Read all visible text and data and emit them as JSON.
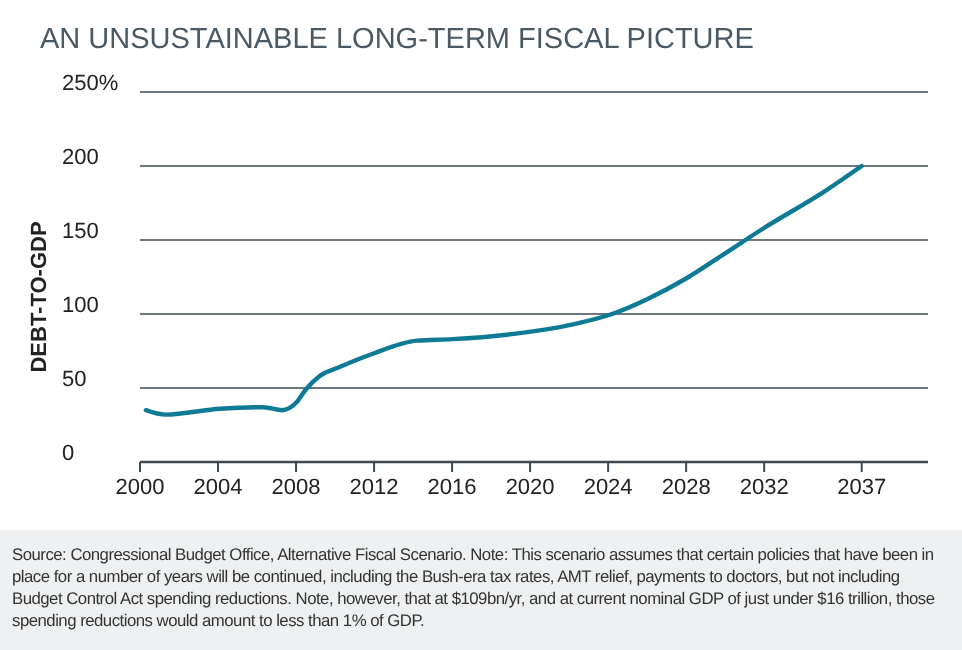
{
  "chart_data": {
    "type": "line",
    "title": "AN UNSUSTAINABLE LONG-TERM FISCAL PICTURE",
    "ylabel": "DEBT-TO-GDP",
    "x": [
      2000.3,
      2001.3,
      2004.1,
      2006.3,
      2007.3,
      2008,
      2008.5,
      2009.2,
      2010.2,
      2011.9,
      2014.2,
      2016,
      2018.8,
      2022.2,
      2024.2,
      2026,
      2028,
      2030,
      2032.1,
      2035,
      2037
    ],
    "series": [
      {
        "color": "#0f7a94",
        "values": [
          35,
          32,
          36,
          37,
          35,
          40,
          49,
          58,
          64,
          73,
          82,
          83,
          86,
          93,
          100,
          110,
          124,
          141,
          159,
          182,
          200
        ]
      }
    ],
    "xlim": [
      2000,
      2040.4
    ],
    "xticks": [
      2000,
      2004,
      2008,
      2012,
      2016,
      2020,
      2024,
      2028,
      2032,
      2037
    ],
    "ylim": [
      0,
      250
    ],
    "yticks": [
      0,
      50,
      100,
      150,
      200,
      {
        "value": 250,
        "label": "250%"
      }
    ],
    "grid": "y",
    "line_style": "solid",
    "marker": "none",
    "annotations": [
      "Source: Congressional Budget Office, Alternative Fiscal Scenario. Note: This scenario assumes that certain policies that have been in place for a number of years will be continued, including the Bush-era tax rates, AMT relief, payments to doctors, but not including Budget Control Act spending reductions. Note, however, that at $109bn/yr, and at current nominal GDP of just under $16 trillion, those spending reductions would amount to less than 1% of GDP."
    ]
  }
}
